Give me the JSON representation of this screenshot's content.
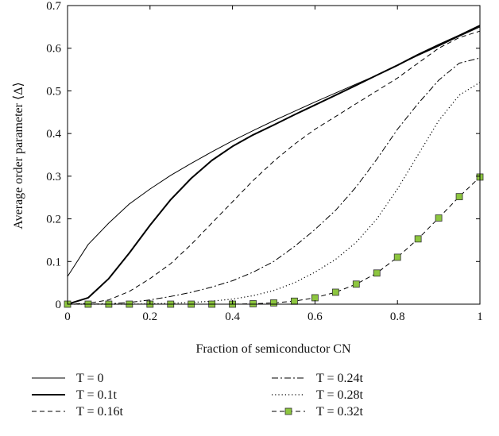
{
  "chart_data": {
    "type": "line",
    "xlabel": "Fraction of semiconductor CN",
    "ylabel": "Average order parameter ⟨Δ⟩",
    "xlim": [
      0,
      1
    ],
    "ylim": [
      0,
      0.7
    ],
    "xticks": [
      "0",
      "0.2",
      "0.4",
      "0.6",
      "0.8",
      "1"
    ],
    "xtick_values": [
      0,
      0.2,
      0.4,
      0.6,
      0.8,
      1
    ],
    "yticks": [
      "0",
      "0.1",
      "0.2",
      "0.3",
      "0.4",
      "0.5",
      "0.6",
      "0.7"
    ],
    "ytick_values": [
      0,
      0.1,
      0.2,
      0.3,
      0.4,
      0.5,
      0.6,
      0.7
    ],
    "grid": false,
    "legend_position": "below",
    "series": [
      {
        "name": "T = 0",
        "style": "thin-solid",
        "x": [
          0,
          0.05,
          0.1,
          0.15,
          0.2,
          0.25,
          0.3,
          0.35,
          0.4,
          0.45,
          0.5,
          0.55,
          0.6,
          0.65,
          0.7,
          0.75,
          0.8,
          0.85,
          0.9,
          0.95,
          1
        ],
        "y": [
          0.065,
          0.14,
          0.19,
          0.235,
          0.27,
          0.302,
          0.33,
          0.357,
          0.383,
          0.407,
          0.43,
          0.452,
          0.474,
          0.495,
          0.516,
          0.537,
          0.56,
          0.583,
          0.605,
          0.628,
          0.65
        ]
      },
      {
        "name": "T = 0.1t",
        "style": "thick-solid",
        "x": [
          0,
          0.05,
          0.1,
          0.15,
          0.2,
          0.25,
          0.3,
          0.35,
          0.4,
          0.45,
          0.5,
          0.55,
          0.6,
          0.65,
          0.7,
          0.75,
          0.8,
          0.85,
          0.9,
          0.95,
          1
        ],
        "y": [
          0,
          0.015,
          0.06,
          0.12,
          0.185,
          0.245,
          0.295,
          0.337,
          0.37,
          0.397,
          0.42,
          0.444,
          0.467,
          0.49,
          0.513,
          0.537,
          0.56,
          0.585,
          0.608,
          0.63,
          0.653
        ]
      },
      {
        "name": "T = 0.16t",
        "style": "dashed",
        "x": [
          0,
          0.05,
          0.1,
          0.15,
          0.2,
          0.25,
          0.3,
          0.35,
          0.4,
          0.45,
          0.5,
          0.55,
          0.6,
          0.65,
          0.7,
          0.75,
          0.8,
          0.85,
          0.9,
          0.95,
          1
        ],
        "y": [
          0,
          0.002,
          0.01,
          0.03,
          0.06,
          0.095,
          0.14,
          0.19,
          0.24,
          0.29,
          0.335,
          0.375,
          0.41,
          0.44,
          0.47,
          0.5,
          0.53,
          0.565,
          0.6,
          0.625,
          0.64
        ]
      },
      {
        "name": "T = 0.24t",
        "style": "dash-dot",
        "x": [
          0,
          0.05,
          0.1,
          0.15,
          0.2,
          0.25,
          0.3,
          0.35,
          0.4,
          0.45,
          0.5,
          0.55,
          0.6,
          0.65,
          0.7,
          0.75,
          0.8,
          0.85,
          0.9,
          0.95,
          1
        ],
        "y": [
          0,
          0,
          0.001,
          0.004,
          0.01,
          0.018,
          0.028,
          0.04,
          0.055,
          0.075,
          0.1,
          0.135,
          0.175,
          0.22,
          0.275,
          0.34,
          0.41,
          0.47,
          0.525,
          0.565,
          0.577
        ]
      },
      {
        "name": "T = 0.28t",
        "style": "dotted",
        "x": [
          0,
          0.05,
          0.1,
          0.15,
          0.2,
          0.25,
          0.3,
          0.35,
          0.4,
          0.45,
          0.5,
          0.55,
          0.6,
          0.65,
          0.7,
          0.75,
          0.8,
          0.85,
          0.9,
          0.95,
          1
        ],
        "y": [
          0,
          0,
          0,
          0,
          0.001,
          0.002,
          0.004,
          0.007,
          0.012,
          0.02,
          0.032,
          0.05,
          0.075,
          0.105,
          0.145,
          0.2,
          0.27,
          0.35,
          0.43,
          0.49,
          0.52
        ]
      },
      {
        "name": "T = 0.32t",
        "style": "dashed-square-marker",
        "marker_color": "#8dc63f",
        "x": [
          0,
          0.05,
          0.1,
          0.15,
          0.2,
          0.25,
          0.3,
          0.35,
          0.4,
          0.45,
          0.5,
          0.55,
          0.6,
          0.65,
          0.7,
          0.75,
          0.8,
          0.85,
          0.9,
          0.95,
          1
        ],
        "y": [
          0,
          0,
          0,
          0,
          0,
          0,
          0,
          0,
          0,
          0.001,
          0.003,
          0.007,
          0.015,
          0.028,
          0.047,
          0.073,
          0.11,
          0.153,
          0.202,
          0.252,
          0.298
        ]
      }
    ]
  }
}
